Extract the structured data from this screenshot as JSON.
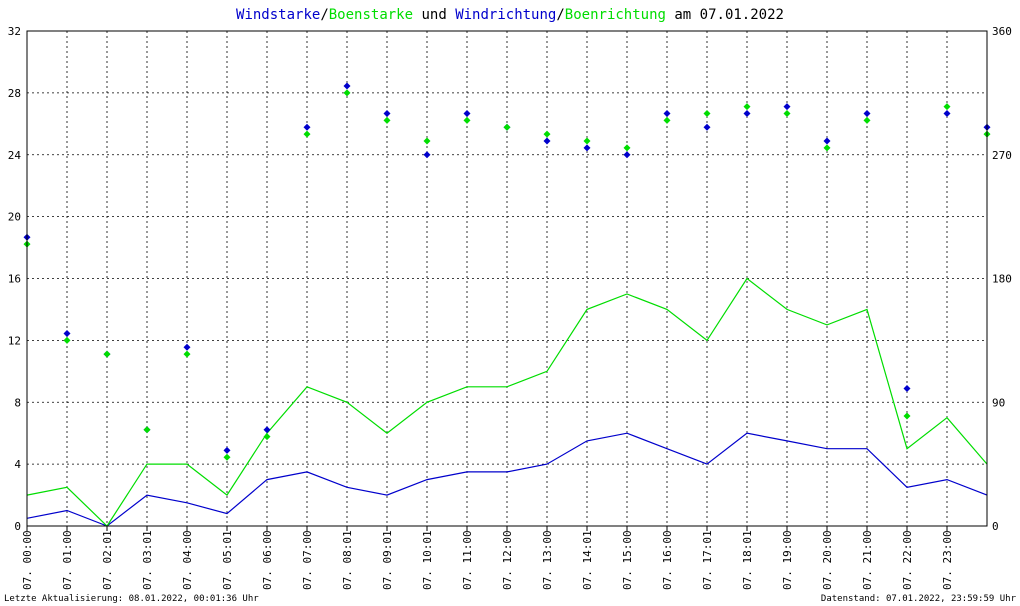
{
  "title": {
    "part1": "Windstarke",
    "sep1": "/",
    "part2": "Boenstarke",
    "mid": " und ",
    "part3": "Windrichtung",
    "sep2": "/",
    "part4": "Boenrichtung",
    "end": " am 07.01.2022"
  },
  "footer": {
    "left": "Letzte Aktualisierung: 08.01.2022, 00:01:36 Uhr",
    "right": "Datenstand: 07.01.2022, 23:59:59 Uhr"
  },
  "colors": {
    "wind": "#0000cc",
    "gust": "#00dd00",
    "grid": "#000000"
  },
  "chart_data": {
    "type": "line",
    "left_axis": {
      "min": 0,
      "max": 32,
      "ticks": [
        "0",
        "4",
        "8",
        "12",
        "16",
        "20",
        "24",
        "28",
        "32"
      ]
    },
    "right_axis": {
      "min": 0,
      "max": 360,
      "ticks": [
        "0",
        "90",
        "180",
        "270",
        "360"
      ]
    },
    "x_ticks": [
      "07. 00:00",
      "07. 01:00",
      "07. 02:01",
      "07. 03:01",
      "07. 04:00",
      "07. 05:01",
      "07. 06:00",
      "07. 07:00",
      "07. 08:01",
      "07. 09:01",
      "07. 10:01",
      "07. 11:00",
      "07. 12:00",
      "07. 13:00",
      "07. 14:01",
      "07. 15:00",
      "07. 16:00",
      "07. 17:01",
      "07. 18:01",
      "07. 19:00",
      "07. 20:00",
      "07. 21:00",
      "07. 22:00",
      "07. 23:00"
    ],
    "x_range_hours": [
      0,
      24
    ],
    "grid": true,
    "series": [
      {
        "name": "Windstarke",
        "kind": "speed",
        "color": "#0000cc",
        "values": [
          [
            0,
            0.5
          ],
          [
            1,
            1
          ],
          [
            2,
            0
          ],
          [
            3,
            2
          ],
          [
            4,
            1.5
          ],
          [
            5,
            0.8
          ],
          [
            6,
            3
          ],
          [
            7,
            3.5
          ],
          [
            8,
            2.5
          ],
          [
            9,
            2
          ],
          [
            10,
            3
          ],
          [
            11,
            3.5
          ],
          [
            12,
            3.5
          ],
          [
            13,
            4
          ],
          [
            14,
            5.5
          ],
          [
            15,
            6
          ],
          [
            16,
            5
          ],
          [
            17,
            4
          ],
          [
            18,
            6
          ],
          [
            19,
            5.5
          ],
          [
            20,
            5
          ],
          [
            21,
            5
          ],
          [
            22,
            2.5
          ],
          [
            23,
            3
          ],
          [
            24,
            2
          ]
        ]
      },
      {
        "name": "Boenstarke",
        "kind": "speed",
        "color": "#00dd00",
        "values": [
          [
            0,
            2
          ],
          [
            1,
            2.5
          ],
          [
            2,
            0
          ],
          [
            3,
            4
          ],
          [
            4,
            4
          ],
          [
            5,
            2
          ],
          [
            6,
            6
          ],
          [
            7,
            9
          ],
          [
            8,
            8
          ],
          [
            9,
            6
          ],
          [
            10,
            8
          ],
          [
            11,
            9
          ],
          [
            12,
            9
          ],
          [
            13,
            10
          ],
          [
            14,
            14
          ],
          [
            15,
            15
          ],
          [
            16,
            14
          ],
          [
            17,
            12
          ],
          [
            18,
            16
          ],
          [
            19,
            14
          ],
          [
            20,
            13
          ],
          [
            21,
            14
          ],
          [
            22,
            5
          ],
          [
            23,
            7
          ],
          [
            24,
            4
          ]
        ]
      },
      {
        "name": "Windrichtung",
        "kind": "direction",
        "color": "#0000cc",
        "values": [
          [
            0,
            210
          ],
          [
            1,
            140
          ],
          [
            2,
            125
          ],
          [
            3,
            70
          ],
          [
            4,
            130
          ],
          [
            5,
            55
          ],
          [
            6,
            70
          ],
          [
            7,
            290
          ],
          [
            8,
            320
          ],
          [
            9,
            300
          ],
          [
            10,
            270
          ],
          [
            11,
            300
          ],
          [
            12,
            290
          ],
          [
            13,
            280
          ],
          [
            14,
            275
          ],
          [
            15,
            270
          ],
          [
            16,
            300
          ],
          [
            17,
            290
          ],
          [
            18,
            300
          ],
          [
            19,
            305
          ],
          [
            20,
            280
          ],
          [
            21,
            300
          ],
          [
            22,
            100
          ],
          [
            23,
            300
          ],
          [
            24,
            290
          ]
        ]
      },
      {
        "name": "Boenrichtung",
        "kind": "direction",
        "color": "#00dd00",
        "values": [
          [
            0,
            205
          ],
          [
            1,
            135
          ],
          [
            2,
            125
          ],
          [
            3,
            70
          ],
          [
            4,
            125
          ],
          [
            5,
            50
          ],
          [
            6,
            65
          ],
          [
            7,
            285
          ],
          [
            8,
            315
          ],
          [
            9,
            295
          ],
          [
            10,
            280
          ],
          [
            11,
            295
          ],
          [
            12,
            290
          ],
          [
            13,
            285
          ],
          [
            14,
            280
          ],
          [
            15,
            275
          ],
          [
            16,
            295
          ],
          [
            17,
            300
          ],
          [
            18,
            305
          ],
          [
            19,
            300
          ],
          [
            20,
            275
          ],
          [
            21,
            295
          ],
          [
            22,
            80
          ],
          [
            23,
            305
          ],
          [
            24,
            285
          ]
        ]
      }
    ]
  }
}
